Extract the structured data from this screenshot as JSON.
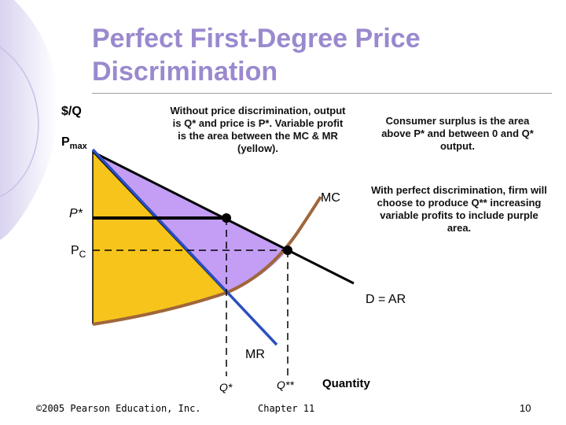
{
  "slide": {
    "title_line1": "Perfect First-Degree Price",
    "title_line2": "Discrimination",
    "colors": {
      "title": "#9b89cf",
      "yellow_area": "#f6c41b",
      "purple_area": "#c39ef4",
      "mc_curve": "#a0663a",
      "mr_curve": "#2a4fc0",
      "demand_curve": "#000000"
    }
  },
  "diagram": {
    "y_axis_label": "$/Q",
    "x_axis_label": "Quantity",
    "pmax_base": "P",
    "pmax_sub": "max",
    "p_star_label": "P*",
    "pc_base": "P",
    "pc_sub": "C",
    "q_star_label": "Q*",
    "q_double_star_label": "Q**",
    "mc_label": "MC",
    "demand_label": "D = AR",
    "mr_label": "MR"
  },
  "notes": {
    "without_discrimination": "Without price discrimination, output is Q* and price is P*. Variable profit is the area between the MC & MR (yellow).",
    "consumer_surplus": "Consumer surplus is the area above P* and between 0 and Q* output.",
    "perfect_discrimination": "With perfect discrimination, firm will choose to produce Q** increasing variable profits to include purple area."
  },
  "footer": {
    "copyright": "©2005 Pearson Education, Inc.",
    "chapter": "Chapter 11",
    "page_number": "10"
  }
}
